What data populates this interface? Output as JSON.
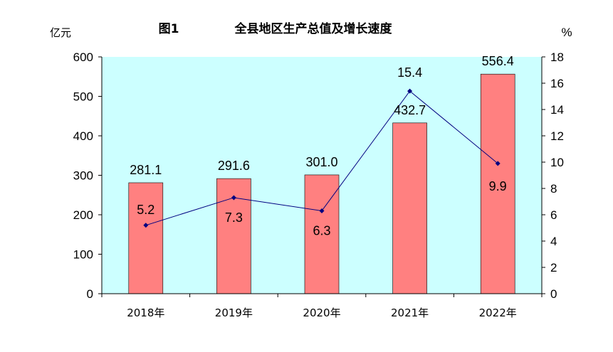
{
  "chart_data": {
    "type": "bar",
    "title_num": "图1",
    "title": "全县地区生产总值及增长速度",
    "ylabel": "亿元",
    "y2label": "%",
    "categories": [
      "2018年",
      "2019年",
      "2020年",
      "2021年",
      "2022年"
    ],
    "ylim": [
      0,
      600
    ],
    "y2lim": [
      0,
      18
    ],
    "yticks": [
      "0",
      "100",
      "200",
      "300",
      "400",
      "500",
      "600"
    ],
    "y2ticks": [
      "0",
      "2",
      "4",
      "6",
      "8",
      "10",
      "12",
      "14",
      "16",
      "18"
    ],
    "series": [
      {
        "type": "bar",
        "values": [
          281.1,
          291.6,
          301.0,
          432.7,
          556.4
        ],
        "labels": [
          "281.1",
          "291.6",
          "301.0",
          "432.7",
          "556.4"
        ],
        "color": "#ff8080"
      },
      {
        "type": "line",
        "axis": "right",
        "values": [
          5.2,
          7.3,
          6.3,
          15.4,
          9.9
        ],
        "labels": [
          "5.2",
          "7.3",
          "6.3",
          "15.4",
          "9.9"
        ],
        "color": "#000080"
      }
    ],
    "plot_background": "#ccffff",
    "grid": false
  }
}
